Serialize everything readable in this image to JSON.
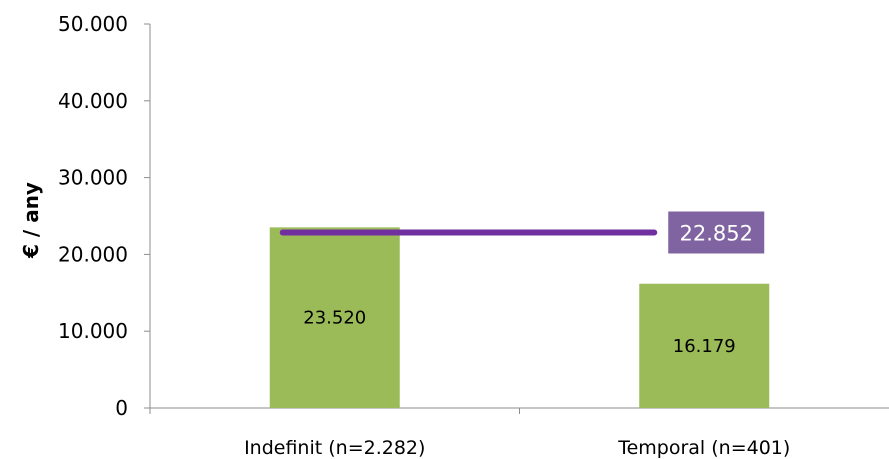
{
  "chart_data": {
    "type": "bar",
    "categories": [
      "Indefinit (n=2.282)",
      "Temporal (n=401)"
    ],
    "values": [
      23520,
      16179
    ],
    "value_labels": [
      "23.520",
      "16.179"
    ],
    "ylabel": "€ / any",
    "ylim": [
      0,
      50000
    ],
    "yticks": [
      0,
      10000,
      20000,
      30000,
      40000,
      50000
    ],
    "ytick_labels": [
      "0",
      "10.000",
      "20.000",
      "30.000",
      "40.000",
      "50.000"
    ],
    "average": {
      "value": 22852,
      "label": "22.852"
    },
    "grid": false,
    "legend": "none",
    "colors": {
      "bar": "#9bbb59",
      "average_line": "#7030a0",
      "average_label_bg": "#8064a2",
      "axis": "#8c8c8c"
    }
  }
}
